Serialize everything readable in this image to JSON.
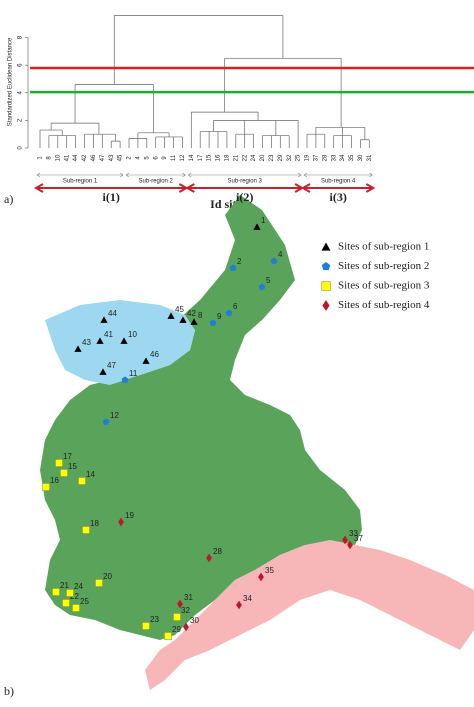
{
  "panel_labels": [
    "a)",
    "b)"
  ],
  "dendrogram": {
    "ylabel": "Standardized Euclidean Distance",
    "xlabel": "Id site",
    "ylim": [
      0,
      10
    ],
    "yticks": [
      0,
      2,
      4,
      6,
      8
    ],
    "cut_lines": [
      {
        "value": 5.8,
        "color": "#e02020"
      },
      {
        "value": 4.05,
        "color": "#22aa33"
      }
    ],
    "tree": {
      "h": 9.6,
      "children": [
        {
          "h": 4.6,
          "group": "i(1)",
          "children": [
            {
              "h": 1.8,
              "name": "Sub-region 1",
              "children": [
                {
                  "h": 1.3,
                  "children": [
                    "1",
                    {
                      "h": 0.9,
                      "children": [
                        "8",
                        "10",
                        "41",
                        "44"
                      ]
                    }
                  ]
                },
                {
                  "h": 1.0,
                  "children": [
                    "42",
                    "46",
                    "47",
                    {
                      "h": 0.5,
                      "children": [
                        "43",
                        "45"
                      ]
                    }
                  ]
                }
              ]
            },
            {
              "h": 1.1,
              "name": "Sub-region 2",
              "children": [
                {
                  "h": 0.7,
                  "children": [
                    "2",
                    "4",
                    "5"
                  ]
                },
                {
                  "h": 0.8,
                  "children": [
                    "6",
                    "9",
                    "11",
                    "12"
                  ]
                }
              ]
            }
          ]
        },
        {
          "h": 6.5,
          "children": [
            {
              "h": 2.6,
              "name": "Sub-region 3",
              "group": "i(2)",
              "children": [
                "14",
                {
                  "h": 2.0,
                  "children": [
                    {
                      "h": 1.2,
                      "children": [
                        "17",
                        "15",
                        "16",
                        "18"
                      ]
                    },
                    {
                      "h": 1.0,
                      "children": [
                        "21",
                        "22",
                        "24"
                      ]
                    },
                    {
                      "h": 0.9,
                      "children": [
                        "20",
                        "23",
                        "29",
                        "32"
                      ]
                    },
                    "25"
                  ]
                }
              ]
            },
            {
              "h": 1.5,
              "name": "Sub-region 4",
              "group": "i(3)",
              "children": [
                {
                  "h": 1.0,
                  "children": [
                    "19",
                    "37",
                    "28"
                  ]
                },
                {
                  "h": 0.9,
                  "children": [
                    "33",
                    "34",
                    "35"
                  ]
                },
                {
                  "h": 0.6,
                  "children": [
                    "30",
                    "31"
                  ]
                }
              ]
            }
          ]
        }
      ]
    }
  },
  "map": {
    "regions": [
      {
        "legend": "Sites of sub-region 1",
        "color": "#000000",
        "shape": "triangle",
        "sites": [
          "1",
          "8",
          "10",
          "41",
          "44",
          "42",
          "46",
          "47",
          "43",
          "45"
        ]
      },
      {
        "legend": "Sites of sub-region 2",
        "color": "#1f7fd8",
        "shape": "pentagon",
        "sites": [
          "2",
          "4",
          "5",
          "6",
          "9",
          "11",
          "12"
        ]
      },
      {
        "legend": "Sites of sub-region 3",
        "color": "#ffff00",
        "shape": "square",
        "sites": [
          "14",
          "17",
          "15",
          "16",
          "18",
          "21",
          "22",
          "24",
          "20",
          "23",
          "29",
          "32",
          "25"
        ]
      },
      {
        "legend": "Sites of sub-region 4",
        "color": "#c0162b",
        "shape": "diamond",
        "sites": [
          "19",
          "37",
          "28",
          "33",
          "34",
          "35",
          "30",
          "31"
        ]
      }
    ]
  }
}
